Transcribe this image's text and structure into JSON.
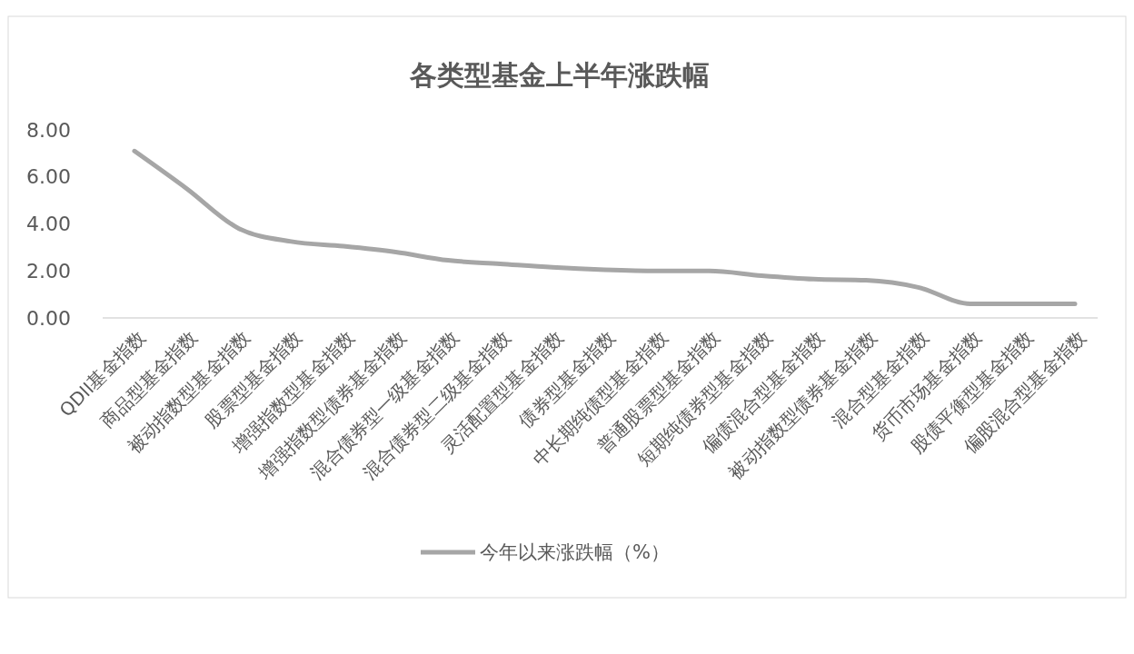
{
  "chart_data": {
    "type": "line",
    "title": "各类型基金上半年涨跌幅",
    "categories": [
      "QDII基金指数",
      "商品型基金指数",
      "被动指数型基金指数",
      "股票型基金指数",
      "增强指数型基金指数",
      "增强指数型债券基金指数",
      "混合债券型一级基金指数",
      "混合债券型二级基金指数",
      "灵活配置型基金指数",
      "债券型基金指数",
      "中长期纯债型基金指数",
      "普通股票型基金指数",
      "短期纯债券型基金指数",
      "偏债混合型基金指数",
      "被动指数型债券基金指数",
      "混合型基金指数",
      "货币市场基金指数",
      "股债平衡型基金指数",
      "偏股混合型基金指数"
    ],
    "series": [
      {
        "name": "今年以来涨跌幅（%）",
        "color": "#a6a6a6",
        "values": [
          7.1,
          5.5,
          3.8,
          3.25,
          3.05,
          2.8,
          2.45,
          2.3,
          2.15,
          2.05,
          2.0,
          2.0,
          1.8,
          1.65,
          1.6,
          1.3,
          0.6,
          0.6,
          0.6
        ]
      }
    ],
    "ylim": [
      0,
      8
    ],
    "yticks": [
      {
        "value": 0,
        "label": "0.00"
      },
      {
        "value": 2,
        "label": "2.00"
      },
      {
        "value": 4,
        "label": "4.00"
      },
      {
        "value": 6,
        "label": "6.00"
      },
      {
        "value": 8,
        "label": "8.00"
      }
    ],
    "grid": false,
    "legend": "bottom",
    "marker": "none",
    "line_style": "solid"
  }
}
